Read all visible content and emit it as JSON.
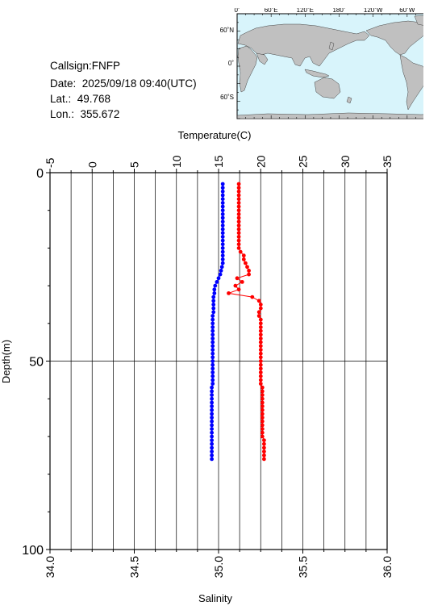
{
  "station": {
    "callsign": "Callsign:FNFP",
    "date": "Date:  2025/09/18 09:40(UTC)",
    "lat": "Lat.:  49.768",
    "lon": "Lon.:  355.672"
  },
  "map": {
    "top_labels": [
      "0˚",
      "60˚E",
      "120˚E",
      "180˚",
      "120˚W",
      "60˚W",
      "0˚"
    ],
    "left_labels": [
      "60˚N",
      "0˚",
      "60˚S"
    ],
    "ocean_color": "#d8f4fb",
    "land_color": "#c0c0c0",
    "marker_color": "#ff0000",
    "marker_icon": "star-icon"
  },
  "chart_data": {
    "type": "line",
    "ylabel": "Depth(m)",
    "ylim": [
      0,
      100
    ],
    "yticks": [
      "0",
      "50",
      "100"
    ],
    "y_inverted": true,
    "top_axis": {
      "label": "Temperature(C)",
      "range": [
        -5,
        35
      ],
      "ticks": [
        "-5",
        "0",
        "5",
        "10",
        "15",
        "20",
        "25",
        "30",
        "35"
      ]
    },
    "bottom_axis": {
      "label": "Salinity",
      "range": [
        34.0,
        36.0
      ],
      "ticks": [
        "34.0",
        "34.5",
        "35.0",
        "35.5",
        "36.0"
      ]
    },
    "grid": true,
    "series": [
      {
        "axis": "temperature",
        "color": "#0000ff",
        "depth": [
          3,
          4,
          5,
          6,
          7,
          8,
          9,
          10,
          11,
          12,
          13,
          14,
          15,
          16,
          17,
          18,
          19,
          20,
          21,
          22,
          23,
          24,
          25,
          26,
          27,
          28,
          29,
          30,
          31,
          32,
          33,
          34,
          35,
          36,
          37,
          38,
          39,
          40,
          41,
          42,
          43,
          44,
          45,
          46,
          47,
          48,
          49,
          50,
          51,
          52,
          53,
          54,
          55,
          56,
          57,
          58,
          59,
          60,
          61,
          62,
          63,
          64,
          65,
          66,
          67,
          68,
          69,
          70,
          71,
          72,
          73,
          74,
          75,
          76
        ],
        "values": [
          15.5,
          15.5,
          15.5,
          15.5,
          15.5,
          15.5,
          15.5,
          15.5,
          15.5,
          15.5,
          15.5,
          15.5,
          15.5,
          15.5,
          15.5,
          15.5,
          15.5,
          15.5,
          15.5,
          15.5,
          15.5,
          15.5,
          15.4,
          15.3,
          15.2,
          15.0,
          14.8,
          14.6,
          14.5,
          14.5,
          14.4,
          14.4,
          14.4,
          14.4,
          14.4,
          14.3,
          14.3,
          14.3,
          14.3,
          14.3,
          14.3,
          14.3,
          14.3,
          14.3,
          14.3,
          14.3,
          14.3,
          14.3,
          14.3,
          14.3,
          14.3,
          14.3,
          14.3,
          14.3,
          14.2,
          14.2,
          14.2,
          14.2,
          14.2,
          14.2,
          14.2,
          14.2,
          14.2,
          14.2,
          14.2,
          14.2,
          14.2,
          14.2,
          14.2,
          14.2,
          14.2,
          14.2,
          14.2,
          14.2
        ]
      },
      {
        "axis": "salinity",
        "color": "#ff0000",
        "depth": [
          3,
          4,
          5,
          6,
          7,
          8,
          9,
          10,
          11,
          12,
          13,
          14,
          15,
          16,
          17,
          18,
          19,
          20,
          21,
          22,
          23,
          24,
          25,
          26,
          27,
          28,
          29,
          30,
          31,
          32,
          33,
          34,
          35,
          36,
          37,
          38,
          39,
          40,
          41,
          42,
          43,
          44,
          45,
          46,
          47,
          48,
          49,
          50,
          51,
          52,
          53,
          54,
          55,
          56,
          57,
          58,
          59,
          60,
          61,
          62,
          63,
          64,
          65,
          66,
          67,
          68,
          69,
          70,
          71,
          72,
          73,
          74,
          75,
          76
        ],
        "values": [
          35.12,
          35.12,
          35.12,
          35.12,
          35.12,
          35.12,
          35.12,
          35.12,
          35.12,
          35.12,
          35.12,
          35.12,
          35.12,
          35.12,
          35.12,
          35.12,
          35.12,
          35.12,
          35.13,
          35.15,
          35.15,
          35.16,
          35.17,
          35.18,
          35.18,
          35.11,
          35.14,
          35.1,
          35.12,
          35.06,
          35.2,
          35.24,
          35.25,
          35.25,
          35.24,
          35.24,
          35.25,
          35.25,
          35.25,
          35.25,
          35.25,
          35.25,
          35.25,
          35.25,
          35.25,
          35.25,
          35.25,
          35.25,
          35.25,
          35.25,
          35.25,
          35.25,
          35.25,
          35.25,
          35.26,
          35.26,
          35.26,
          35.26,
          35.26,
          35.26,
          35.26,
          35.26,
          35.26,
          35.26,
          35.26,
          35.26,
          35.26,
          35.26,
          35.27,
          35.27,
          35.27,
          35.27,
          35.27,
          35.27
        ]
      }
    ]
  }
}
